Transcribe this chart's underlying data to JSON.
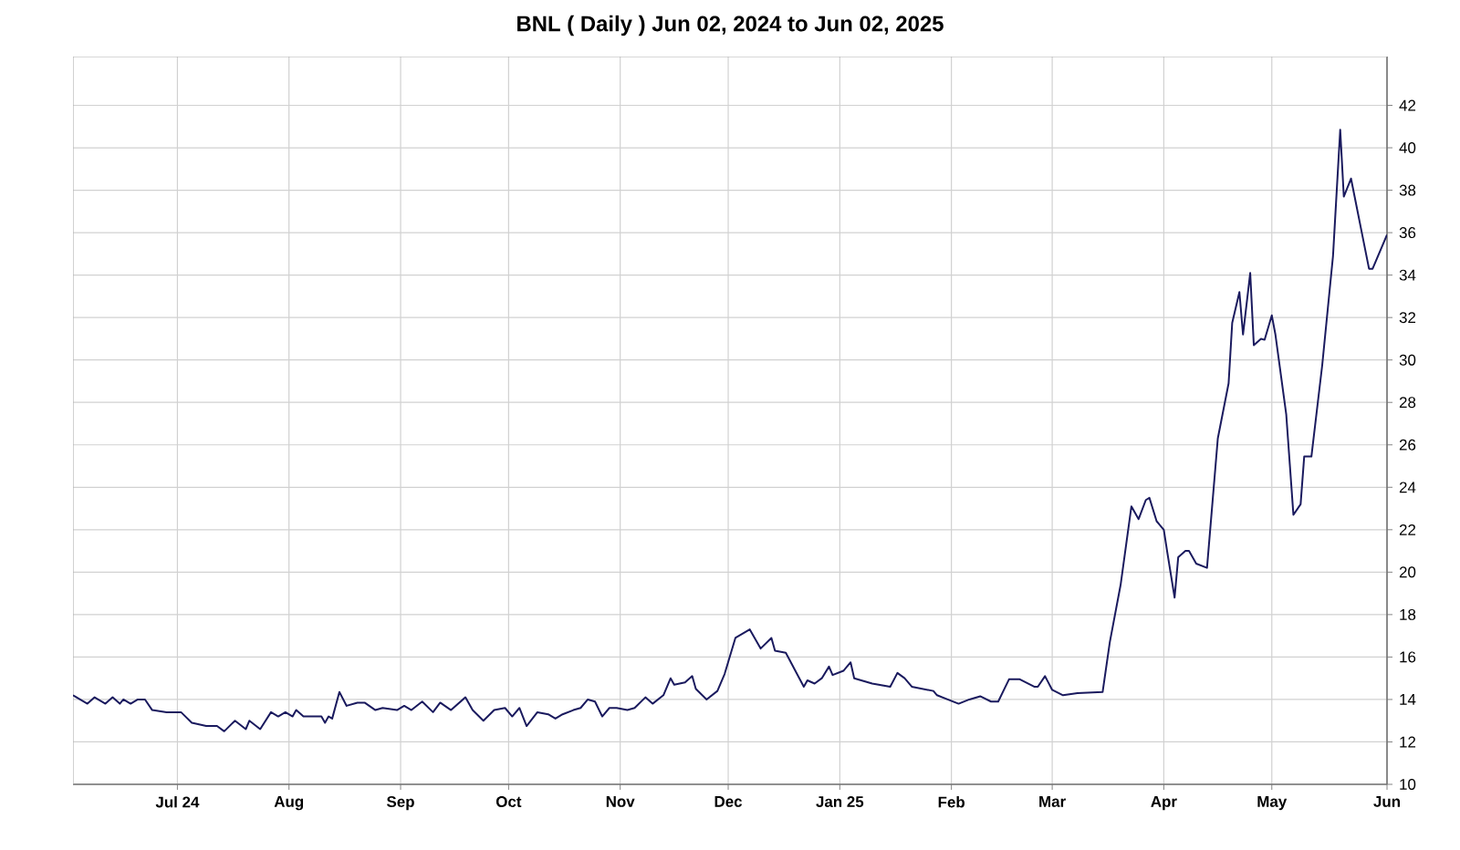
{
  "chart_data": {
    "type": "line",
    "title": "BNL ( Daily ) Jun 02, 2024 to Jun 02, 2025",
    "x": [
      "2024-06-02",
      "2024-06-06",
      "2024-06-08",
      "2024-06-11",
      "2024-06-13",
      "2024-06-15",
      "2024-06-16",
      "2024-06-18",
      "2024-06-20",
      "2024-06-22",
      "2024-06-24",
      "2024-06-28",
      "2024-07-02",
      "2024-07-05",
      "2024-07-09",
      "2024-07-12",
      "2024-07-14",
      "2024-07-17",
      "2024-07-20",
      "2024-07-21",
      "2024-07-24",
      "2024-07-27",
      "2024-07-29",
      "2024-07-31",
      "2024-08-02",
      "2024-08-03",
      "2024-08-05",
      "2024-08-10",
      "2024-08-11",
      "2024-08-12",
      "2024-08-13",
      "2024-08-15",
      "2024-08-17",
      "2024-08-20",
      "2024-08-22",
      "2024-08-25",
      "2024-08-27",
      "2024-08-31",
      "2024-09-02",
      "2024-09-04",
      "2024-09-07",
      "2024-09-10",
      "2024-09-12",
      "2024-09-15",
      "2024-09-19",
      "2024-09-21",
      "2024-09-24",
      "2024-09-27",
      "2024-09-30",
      "2024-10-02",
      "2024-10-04",
      "2024-10-06",
      "2024-10-09",
      "2024-10-12",
      "2024-10-14",
      "2024-10-16",
      "2024-10-19",
      "2024-10-21",
      "2024-10-23",
      "2024-10-25",
      "2024-10-27",
      "2024-10-29",
      "2024-10-31",
      "2024-11-03",
      "2024-11-05",
      "2024-11-08",
      "2024-11-10",
      "2024-11-13",
      "2024-11-15",
      "2024-11-16",
      "2024-11-19",
      "2024-11-21",
      "2024-11-22",
      "2024-11-25",
      "2024-11-28",
      "2024-11-30",
      "2024-12-03",
      "2024-12-07",
      "2024-12-10",
      "2024-12-13",
      "2024-12-14",
      "2024-12-17",
      "2024-12-22",
      "2024-12-23",
      "2024-12-25",
      "2024-12-27",
      "2024-12-29",
      "2024-12-30",
      "2025-01-02",
      "2025-01-04",
      "2025-01-05",
      "2025-01-10",
      "2025-01-15",
      "2025-01-17",
      "2025-01-19",
      "2025-01-21",
      "2025-01-27",
      "2025-01-28",
      "2025-02-03",
      "2025-02-06",
      "2025-02-09",
      "2025-02-12",
      "2025-02-14",
      "2025-02-17",
      "2025-02-20",
      "2025-02-24",
      "2025-02-25",
      "2025-02-27",
      "2025-03-01",
      "2025-03-04",
      "2025-03-08",
      "2025-03-15",
      "2025-03-17",
      "2025-03-20",
      "2025-03-23",
      "2025-03-25",
      "2025-03-27",
      "2025-03-28",
      "2025-03-30",
      "2025-04-01",
      "2025-04-02",
      "2025-04-04",
      "2025-04-05",
      "2025-04-07",
      "2025-04-08",
      "2025-04-10",
      "2025-04-13",
      "2025-04-16",
      "2025-04-19",
      "2025-04-20",
      "2025-04-22",
      "2025-04-23",
      "2025-04-25",
      "2025-04-26",
      "2025-04-28",
      "2025-04-29",
      "2025-05-01",
      "2025-05-02",
      "2025-05-05",
      "2025-05-07",
      "2025-05-09",
      "2025-05-10",
      "2025-05-12",
      "2025-05-15",
      "2025-05-18",
      "2025-05-20",
      "2025-05-21",
      "2025-05-23",
      "2025-05-24",
      "2025-05-26",
      "2025-05-28",
      "2025-05-29",
      "2025-06-02"
    ],
    "series": [
      {
        "color": "#1a1a5e",
        "values": [
          14.2,
          13.8,
          14.1,
          13.8,
          14.1,
          13.8,
          14.0,
          13.8,
          14.0,
          14.0,
          13.5,
          13.4,
          13.4,
          12.9,
          12.75,
          12.75,
          12.5,
          13.0,
          12.6,
          13.0,
          12.6,
          13.4,
          13.2,
          13.4,
          13.2,
          13.5,
          13.2,
          13.2,
          12.9,
          13.2,
          13.1,
          14.35,
          13.7,
          13.85,
          13.85,
          13.5,
          13.6,
          13.5,
          13.7,
          13.5,
          13.9,
          13.4,
          13.85,
          13.5,
          14.1,
          13.5,
          13.0,
          13.5,
          13.6,
          13.2,
          13.6,
          12.75,
          13.4,
          13.3,
          13.1,
          13.3,
          13.5,
          13.6,
          14.0,
          13.9,
          13.2,
          13.6,
          13.6,
          13.5,
          13.6,
          14.1,
          13.8,
          14.2,
          15.0,
          14.7,
          14.8,
          15.1,
          14.5,
          14.0,
          14.4,
          15.2,
          16.9,
          17.3,
          16.4,
          16.9,
          16.3,
          16.2,
          14.6,
          14.9,
          14.75,
          15.0,
          15.55,
          15.15,
          15.35,
          15.75,
          15.0,
          14.75,
          14.6,
          15.25,
          15.0,
          14.6,
          14.4,
          14.2,
          13.8,
          14.0,
          14.15,
          13.9,
          13.9,
          14.95,
          14.95,
          14.6,
          14.6,
          15.1,
          14.45,
          14.2,
          14.3,
          14.35,
          16.7,
          19.4,
          23.1,
          22.5,
          23.4,
          23.5,
          22.4,
          22.0,
          20.9,
          18.8,
          20.7,
          21.0,
          21.0,
          20.4,
          20.2,
          26.3,
          28.9,
          31.75,
          33.2,
          31.2,
          34.1,
          30.7,
          31.0,
          30.95,
          32.1,
          31.2,
          27.45,
          22.7,
          23.2,
          25.45,
          25.45,
          29.75,
          34.9,
          40.85,
          37.7,
          38.55,
          37.7,
          36.0,
          34.3,
          34.3,
          35.9
        ]
      }
    ],
    "xlim": [
      "2024-06-02",
      "2025-06-02"
    ],
    "xticks": [
      {
        "value": "2024-07-01",
        "label": "Jul 24"
      },
      {
        "value": "2024-08-01",
        "label": "Aug"
      },
      {
        "value": "2024-09-01",
        "label": "Sep"
      },
      {
        "value": "2024-10-01",
        "label": "Oct"
      },
      {
        "value": "2024-11-01",
        "label": "Nov"
      },
      {
        "value": "2024-12-01",
        "label": "Dec"
      },
      {
        "value": "2025-01-01",
        "label": "Jan 25"
      },
      {
        "value": "2025-02-01",
        "label": "Feb"
      },
      {
        "value": "2025-03-01",
        "label": "Mar"
      },
      {
        "value": "2025-04-01",
        "label": "Apr"
      },
      {
        "value": "2025-05-01",
        "label": "May"
      },
      {
        "value": "2025-06-02",
        "label": "Jun"
      }
    ],
    "ylim": [
      10,
      44.3
    ],
    "yticks": [
      10,
      12,
      14,
      16,
      18,
      20,
      22,
      24,
      26,
      28,
      30,
      32,
      34,
      36,
      38,
      40,
      42
    ],
    "grid": true,
    "legend": false,
    "marker": "none",
    "line_style": "solid"
  }
}
